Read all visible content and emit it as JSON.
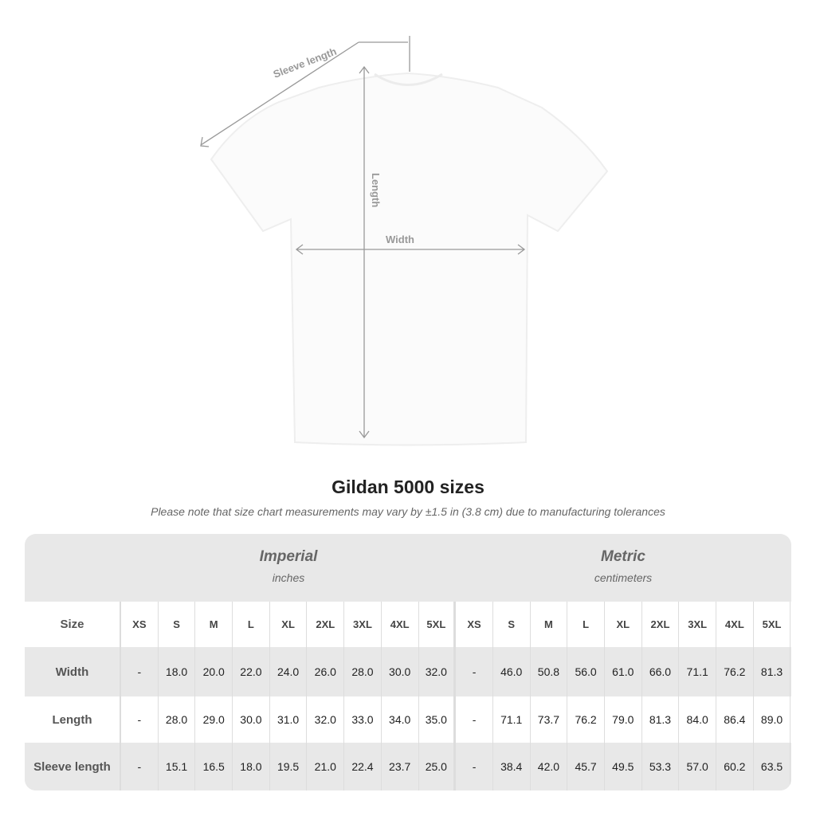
{
  "diagram": {
    "sleeve_label": "Sleeve length",
    "length_label": "Length",
    "width_label": "Width"
  },
  "title": "Gildan 5000 sizes",
  "note": "Please note that size chart measurements may vary by ±1.5 in (3.8 cm) due to manufacturing tolerances",
  "groups": [
    {
      "name": "Imperial",
      "unit": "inches"
    },
    {
      "name": "Metric",
      "unit": "centimeters"
    }
  ],
  "size_label": "Size",
  "sizes": [
    "XS",
    "S",
    "M",
    "L",
    "XL",
    "2XL",
    "3XL",
    "4XL",
    "5XL"
  ],
  "rows": [
    {
      "label": "Width",
      "imperial": [
        "-",
        "18.0",
        "20.0",
        "22.0",
        "24.0",
        "26.0",
        "28.0",
        "30.0",
        "32.0"
      ],
      "metric": [
        "-",
        "46.0",
        "50.8",
        "56.0",
        "61.0",
        "66.0",
        "71.1",
        "76.2",
        "81.3"
      ]
    },
    {
      "label": "Length",
      "imperial": [
        "-",
        "28.0",
        "29.0",
        "30.0",
        "31.0",
        "32.0",
        "33.0",
        "34.0",
        "35.0"
      ],
      "metric": [
        "-",
        "71.1",
        "73.7",
        "76.2",
        "79.0",
        "81.3",
        "84.0",
        "86.4",
        "89.0"
      ]
    },
    {
      "label": "Sleeve length",
      "imperial": [
        "-",
        "15.1",
        "16.5",
        "18.0",
        "19.5",
        "21.0",
        "22.4",
        "23.7",
        "25.0"
      ],
      "metric": [
        "-",
        "38.4",
        "42.0",
        "45.7",
        "49.5",
        "53.3",
        "57.0",
        "60.2",
        "63.5"
      ]
    }
  ]
}
